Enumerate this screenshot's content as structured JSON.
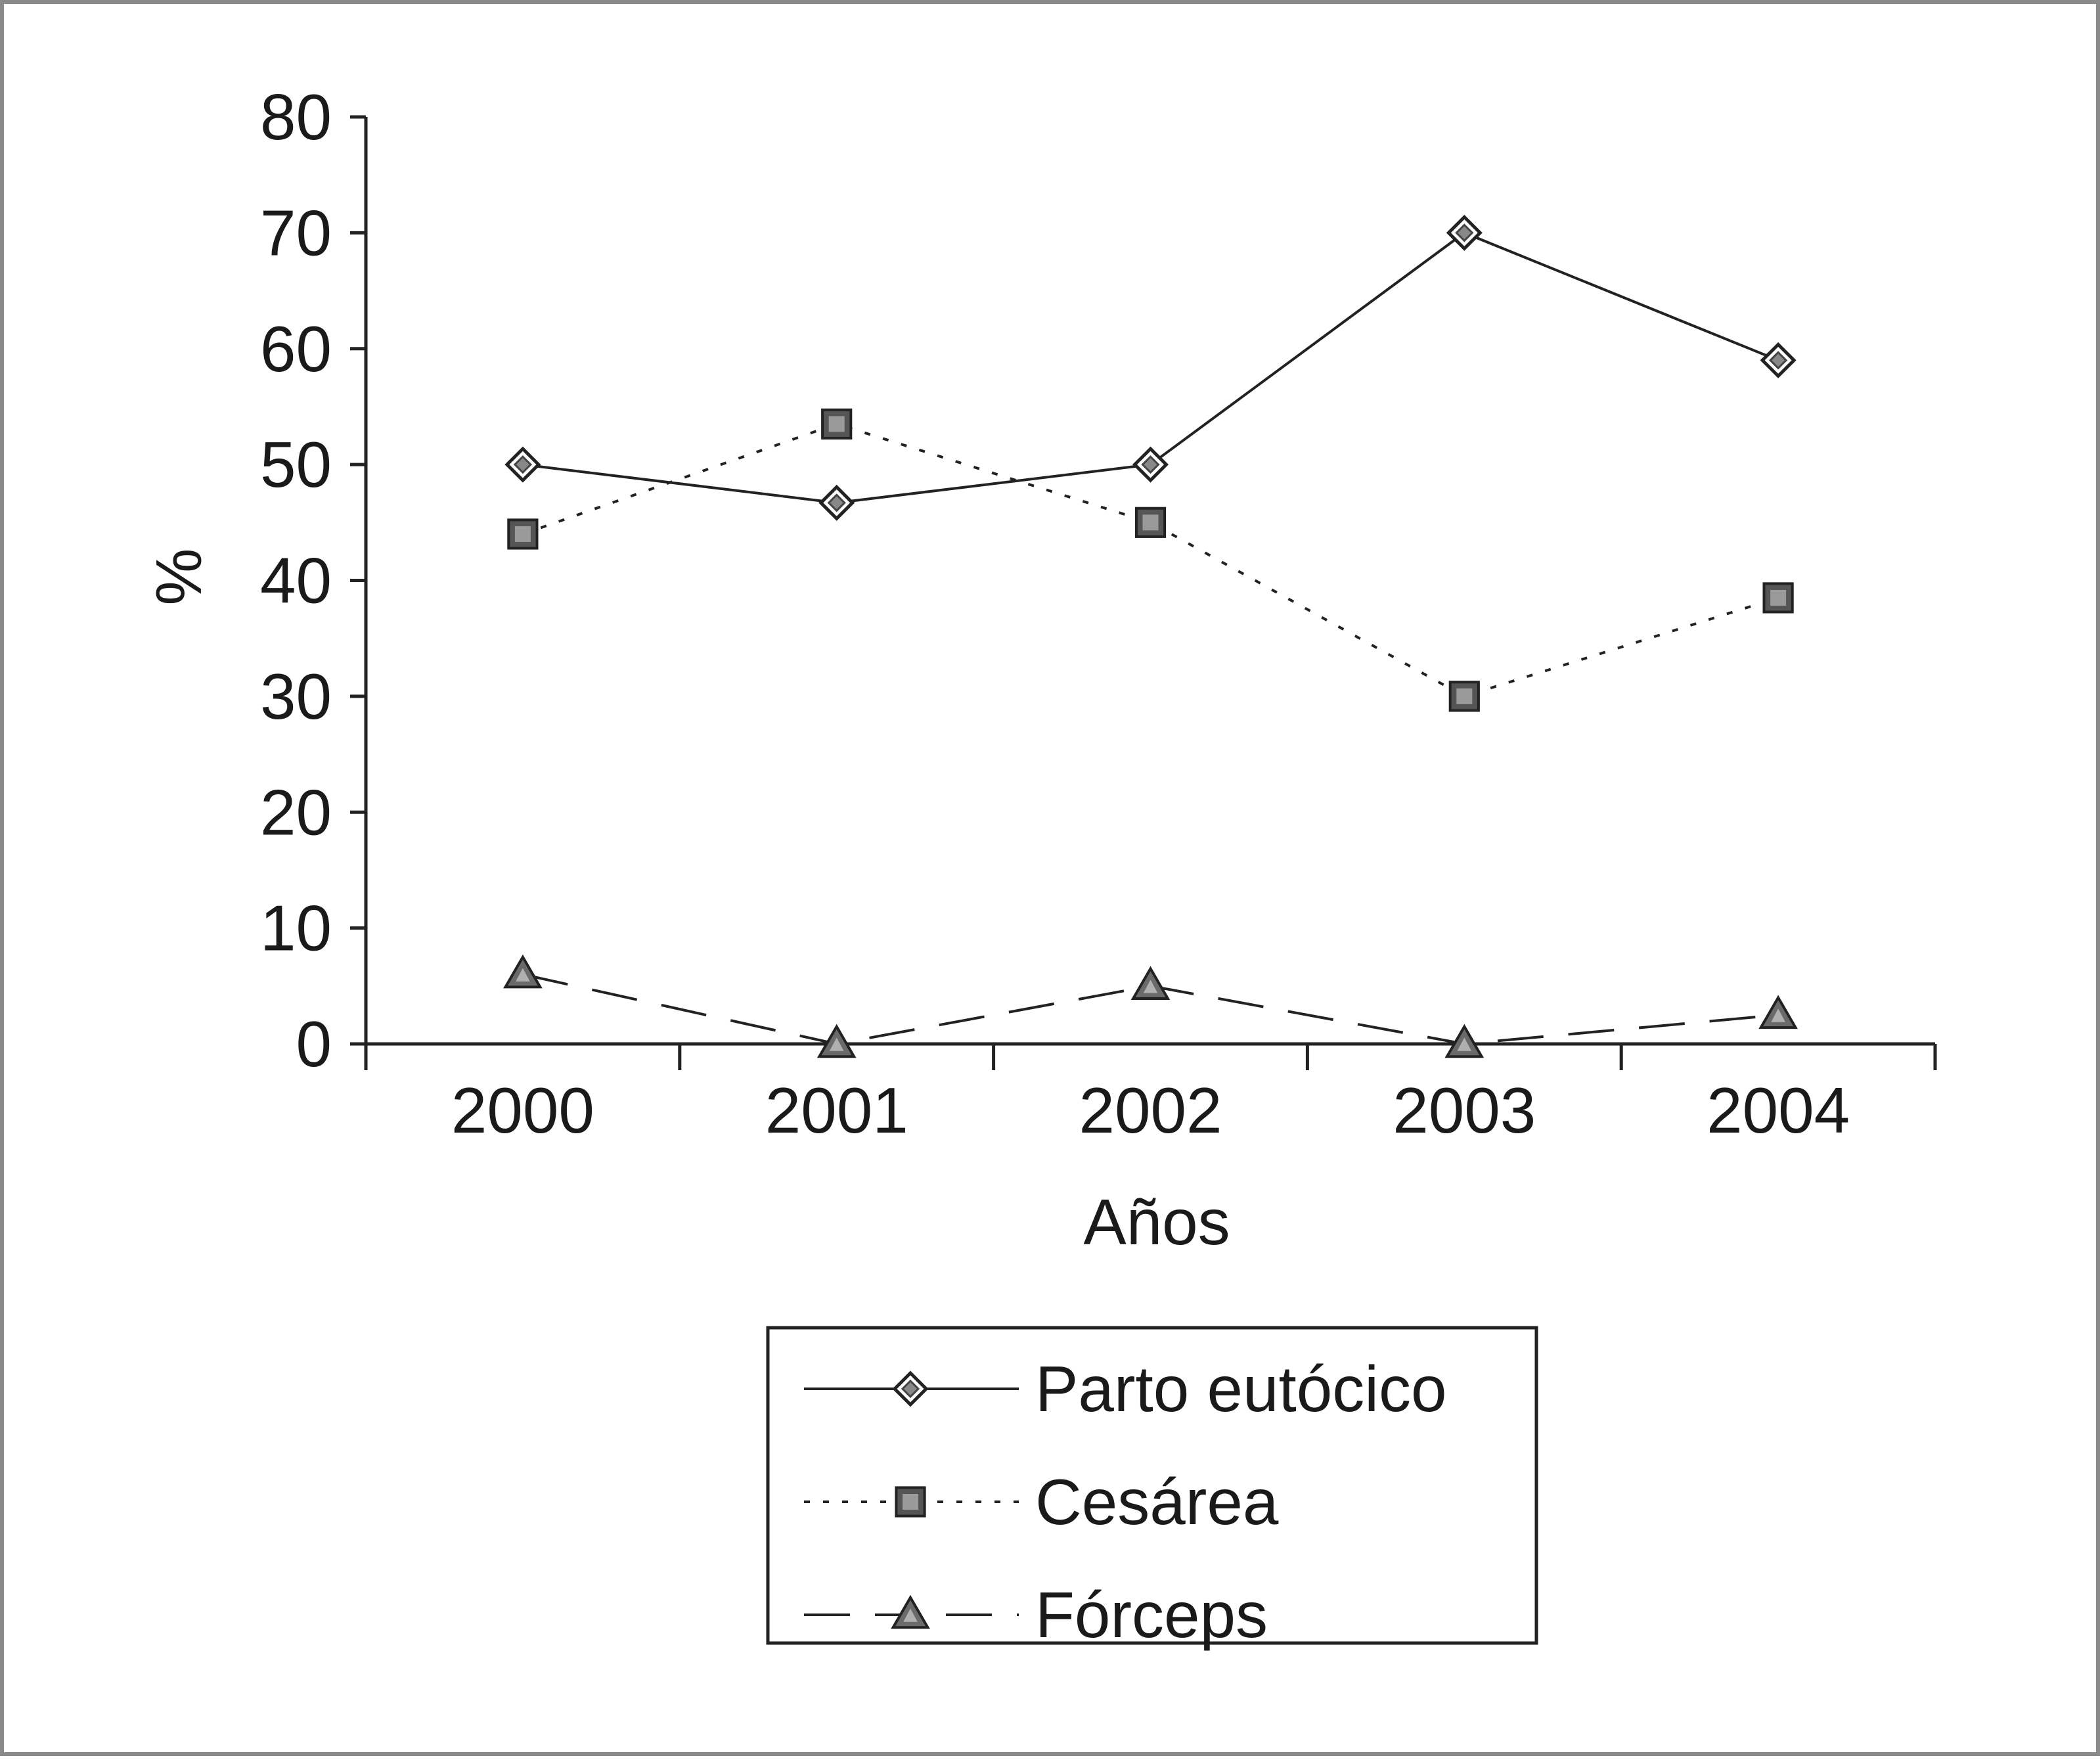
{
  "chart_data": {
    "type": "line",
    "categories": [
      "2000",
      "2001",
      "2002",
      "2003",
      "2004"
    ],
    "xlabel": "Años",
    "ylabel": "%",
    "ylim": [
      0,
      80
    ],
    "yticks": [
      0,
      10,
      20,
      30,
      40,
      50,
      60,
      70,
      80
    ],
    "grid": false,
    "legend_position": "bottom",
    "series": [
      {
        "name": "Parto eutócico",
        "values": [
          50,
          46.7,
          50,
          70,
          59
        ],
        "line": "solid",
        "marker": "diamond"
      },
      {
        "name": "Cesárea",
        "values": [
          44,
          53.5,
          45,
          30,
          38.5
        ],
        "line": "dotted",
        "marker": "square"
      },
      {
        "name": "Fórceps",
        "values": [
          6,
          0,
          5,
          0,
          2.5
        ],
        "line": "dashed",
        "marker": "triangle"
      }
    ]
  }
}
